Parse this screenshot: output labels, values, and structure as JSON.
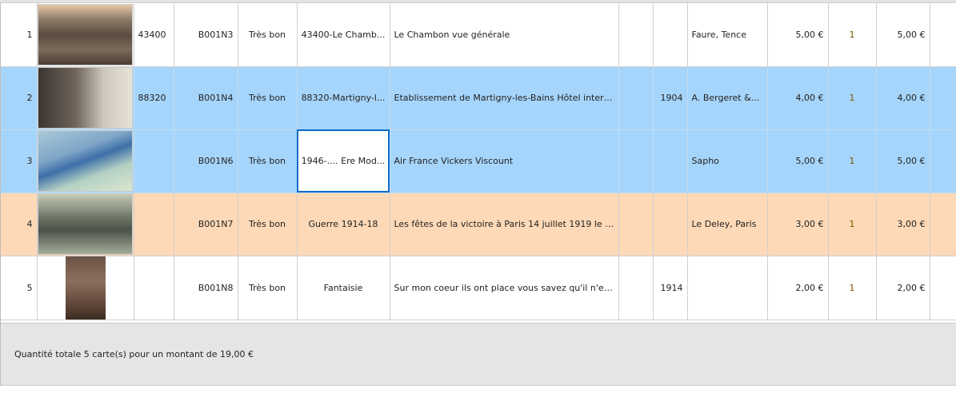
{
  "rows": [
    {
      "num": "1",
      "postcode": "43400",
      "ref": "B001N3",
      "condition": "Très bon",
      "category": "43400-Le Chamb...",
      "title": "Le Chambon vue générale",
      "col8": "",
      "year": "",
      "editor": "Faure, Tence",
      "price": "5,00 €",
      "qty": "1",
      "total": "5,00 €",
      "state": "normal"
    },
    {
      "num": "2",
      "postcode": "88320",
      "ref": "B001N4",
      "condition": "Très bon",
      "category": "88320-Martigny-l...",
      "title": "Etablissement de Martigny-les-Bains Hôtel intern...",
      "col8": "",
      "year": "1904",
      "editor": "A. Bergeret &...",
      "price": "4,00 €",
      "qty": "1",
      "total": "4,00 €",
      "state": "selected"
    },
    {
      "num": "3",
      "postcode": "",
      "ref": "B001N6",
      "condition": "Très bon",
      "category": "1946-.... Ere Mod...",
      "title": "Air France Vickers Viscount",
      "col8": "",
      "year": "",
      "editor": "Sapho",
      "price": "5,00 €",
      "qty": "1",
      "total": "5,00 €",
      "state": "selected"
    },
    {
      "num": "4",
      "postcode": "",
      "ref": "B001N7",
      "condition": "Très bon",
      "category": "Guerre 1914-18",
      "title": "Les fêtes de la victoire à Paris 14 juillet 1919 le d...",
      "col8": "",
      "year": "",
      "editor": "Le Deley, Paris",
      "price": "3,00 €",
      "qty": "1",
      "total": "3,00 €",
      "state": "highlighted"
    },
    {
      "num": "5",
      "postcode": "",
      "ref": "B001N8",
      "condition": "Très bon",
      "category": "Fantaisie",
      "title": "Sur mon coeur ils ont place vous savez qu'il n'est...",
      "col8": "",
      "year": "1914",
      "editor": "",
      "price": "2,00 €",
      "qty": "1",
      "total": "2,00 €",
      "state": "normal"
    }
  ],
  "footer": {
    "summary": "Quantité totale 5 carte(s) pour un montant de 19,00 €"
  },
  "colors": {
    "selected": "#a6d5fb",
    "highlighted": "#fdd9b7",
    "focus_border": "#0a6cc8",
    "footer_bg": "#e5e5e5"
  }
}
